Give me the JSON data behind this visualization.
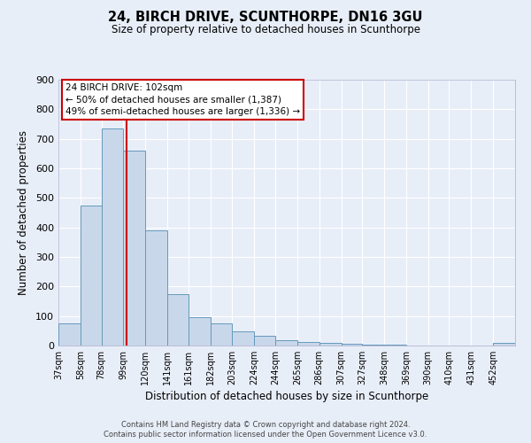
{
  "title": "24, BIRCH DRIVE, SCUNTHORPE, DN16 3GU",
  "subtitle": "Size of property relative to detached houses in Scunthorpe",
  "xlabel": "Distribution of detached houses by size in Scunthorpe",
  "ylabel": "Number of detached properties",
  "bar_color": "#c8d8ea",
  "bar_edge_color": "#6699bb",
  "bin_labels": [
    "37sqm",
    "58sqm",
    "78sqm",
    "99sqm",
    "120sqm",
    "141sqm",
    "161sqm",
    "182sqm",
    "203sqm",
    "224sqm",
    "244sqm",
    "265sqm",
    "286sqm",
    "307sqm",
    "327sqm",
    "348sqm",
    "369sqm",
    "390sqm",
    "410sqm",
    "431sqm",
    "452sqm"
  ],
  "bar_values": [
    75,
    475,
    735,
    660,
    390,
    175,
    97,
    75,
    47,
    33,
    17,
    12,
    8,
    5,
    3,
    3,
    1,
    0,
    0,
    0,
    8
  ],
  "bin_edges": [
    37,
    58,
    78,
    99,
    120,
    141,
    161,
    182,
    203,
    224,
    244,
    265,
    286,
    307,
    327,
    348,
    369,
    390,
    410,
    431,
    452,
    473
  ],
  "vline_x": 102,
  "ylim": [
    0,
    900
  ],
  "yticks": [
    0,
    100,
    200,
    300,
    400,
    500,
    600,
    700,
    800,
    900
  ],
  "annotation_text_line1": "24 BIRCH DRIVE: 102sqm",
  "annotation_text_line2": "← 50% of detached houses are smaller (1,387)",
  "annotation_text_line3": "49% of semi-detached houses are larger (1,336) →",
  "box_edge_color": "#cc0000",
  "footer_line1": "Contains HM Land Registry data © Crown copyright and database right 2024.",
  "footer_line2": "Contains public sector information licensed under the Open Government Licence v3.0.",
  "background_color": "#e8eef8",
  "grid_color": "#ffffff",
  "spine_color": "#aaaacc"
}
